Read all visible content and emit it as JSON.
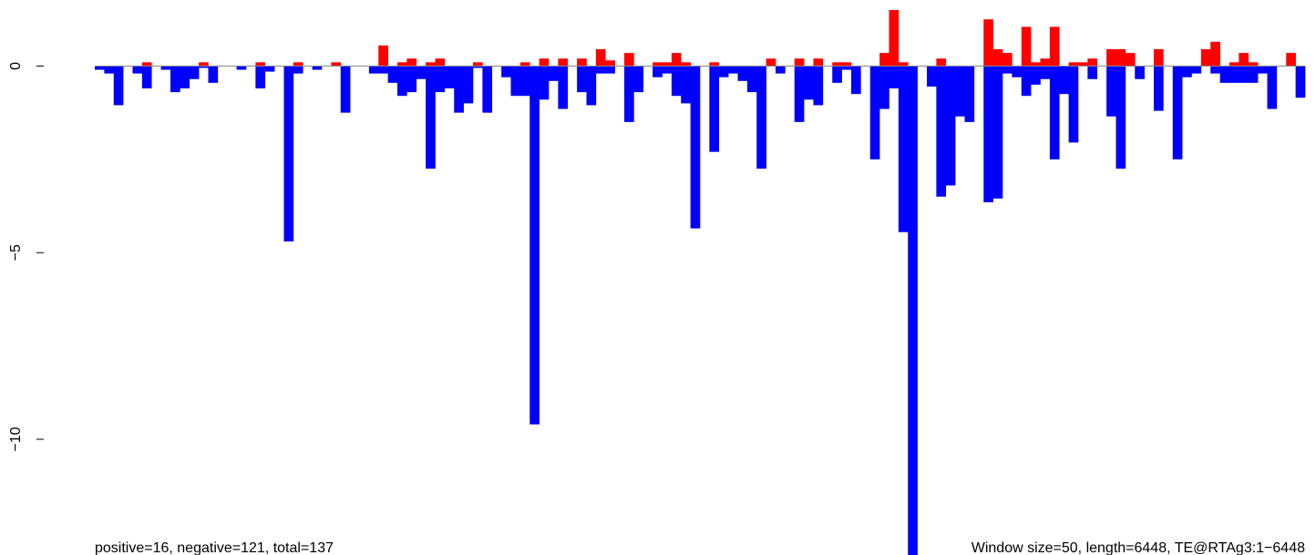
{
  "chart_data": {
    "type": "bar",
    "series": [
      {
        "color": "#ff0000",
        "values": [
          0,
          0,
          0,
          0,
          0,
          0.1,
          0,
          0,
          0,
          0,
          0,
          0.1,
          0,
          0,
          0,
          0,
          0,
          0.1,
          0,
          0,
          0,
          0.1,
          0,
          0,
          0,
          0.1,
          0,
          0,
          0,
          0,
          0.55,
          0,
          0.1,
          0.2,
          0,
          0.1,
          0.2,
          0,
          0,
          0,
          0.1,
          0,
          0,
          0,
          0,
          0.1,
          0,
          0.2,
          0,
          0.2,
          0,
          0.2,
          0,
          0.45,
          0.15,
          0,
          0.35,
          0,
          0,
          0.1,
          0.1,
          0.35,
          0.1,
          0,
          0,
          0.1,
          0,
          0,
          0,
          0,
          0,
          0.2,
          0,
          0,
          0.2,
          0,
          0.2,
          0,
          0.1,
          0.1,
          0,
          0,
          0,
          0.35,
          1.5,
          0.1,
          0,
          0,
          0,
          0.2,
          0,
          0,
          0,
          0,
          1.25,
          0.45,
          0.35,
          0,
          1.05,
          0.1,
          0.2,
          1.05,
          0,
          0.1,
          0.1,
          0.2,
          0,
          0.45,
          0.45,
          0.35,
          0,
          0,
          0.45,
          0,
          0,
          0,
          0,
          0.45,
          0.65,
          0,
          0.1,
          0.35,
          0.1,
          0,
          0,
          0,
          0.35,
          0
        ]
      },
      {
        "color": "#0000ff",
        "values": [
          -0.1,
          -0.2,
          -1.05,
          0,
          -0.2,
          -0.6,
          0,
          -0.1,
          -0.7,
          -0.6,
          -0.35,
          -0.05,
          -0.45,
          0,
          0,
          -0.1,
          0,
          -0.6,
          -0.15,
          0,
          -4.7,
          -0.2,
          0,
          -0.1,
          0,
          0,
          -1.25,
          0,
          0,
          -0.2,
          -0.2,
          -0.45,
          -0.8,
          -0.7,
          -0.35,
          -2.75,
          -0.7,
          -0.6,
          -1.25,
          -1.0,
          -0.05,
          -1.25,
          0,
          -0.3,
          -0.8,
          -0.8,
          -9.6,
          -0.9,
          -0.4,
          -1.15,
          0,
          -0.7,
          -1.05,
          -0.2,
          -0.2,
          0,
          -1.5,
          -0.7,
          0,
          -0.3,
          -0.2,
          -0.8,
          -1.0,
          -4.35,
          0,
          -2.3,
          -0.3,
          -0.2,
          -0.4,
          -0.7,
          -2.75,
          0,
          -0.2,
          0,
          -1.5,
          -0.9,
          -1.05,
          0,
          -0.45,
          -0.1,
          -0.75,
          0,
          -2.5,
          -1.15,
          -0.6,
          -4.45,
          -13.1,
          0,
          -0.55,
          -3.5,
          -3.2,
          -1.35,
          -1.5,
          0,
          -3.65,
          -3.55,
          -0.2,
          -0.3,
          -0.8,
          -0.5,
          -0.35,
          -2.5,
          -0.75,
          -2.05,
          0,
          -0.35,
          0,
          -1.35,
          -2.75,
          0,
          -0.35,
          0,
          -1.2,
          0,
          -2.5,
          -0.3,
          -0.2,
          0,
          -0.2,
          -0.45,
          -0.45,
          -0.45,
          -0.45,
          -0.2,
          -1.15,
          0,
          0,
          -0.85
        ]
      }
    ],
    "ylim": [
      -13.1,
      1.5
    ],
    "yticks": [
      0,
      {
        "value": -5,
        "label": "−5"
      },
      {
        "value": -10,
        "label": "−10"
      }
    ],
    "footnote_left": "positive=16, negative=121, total=137",
    "footnote_right": "Window size=50, length=6448, TE@RTAg3:1−6448"
  }
}
